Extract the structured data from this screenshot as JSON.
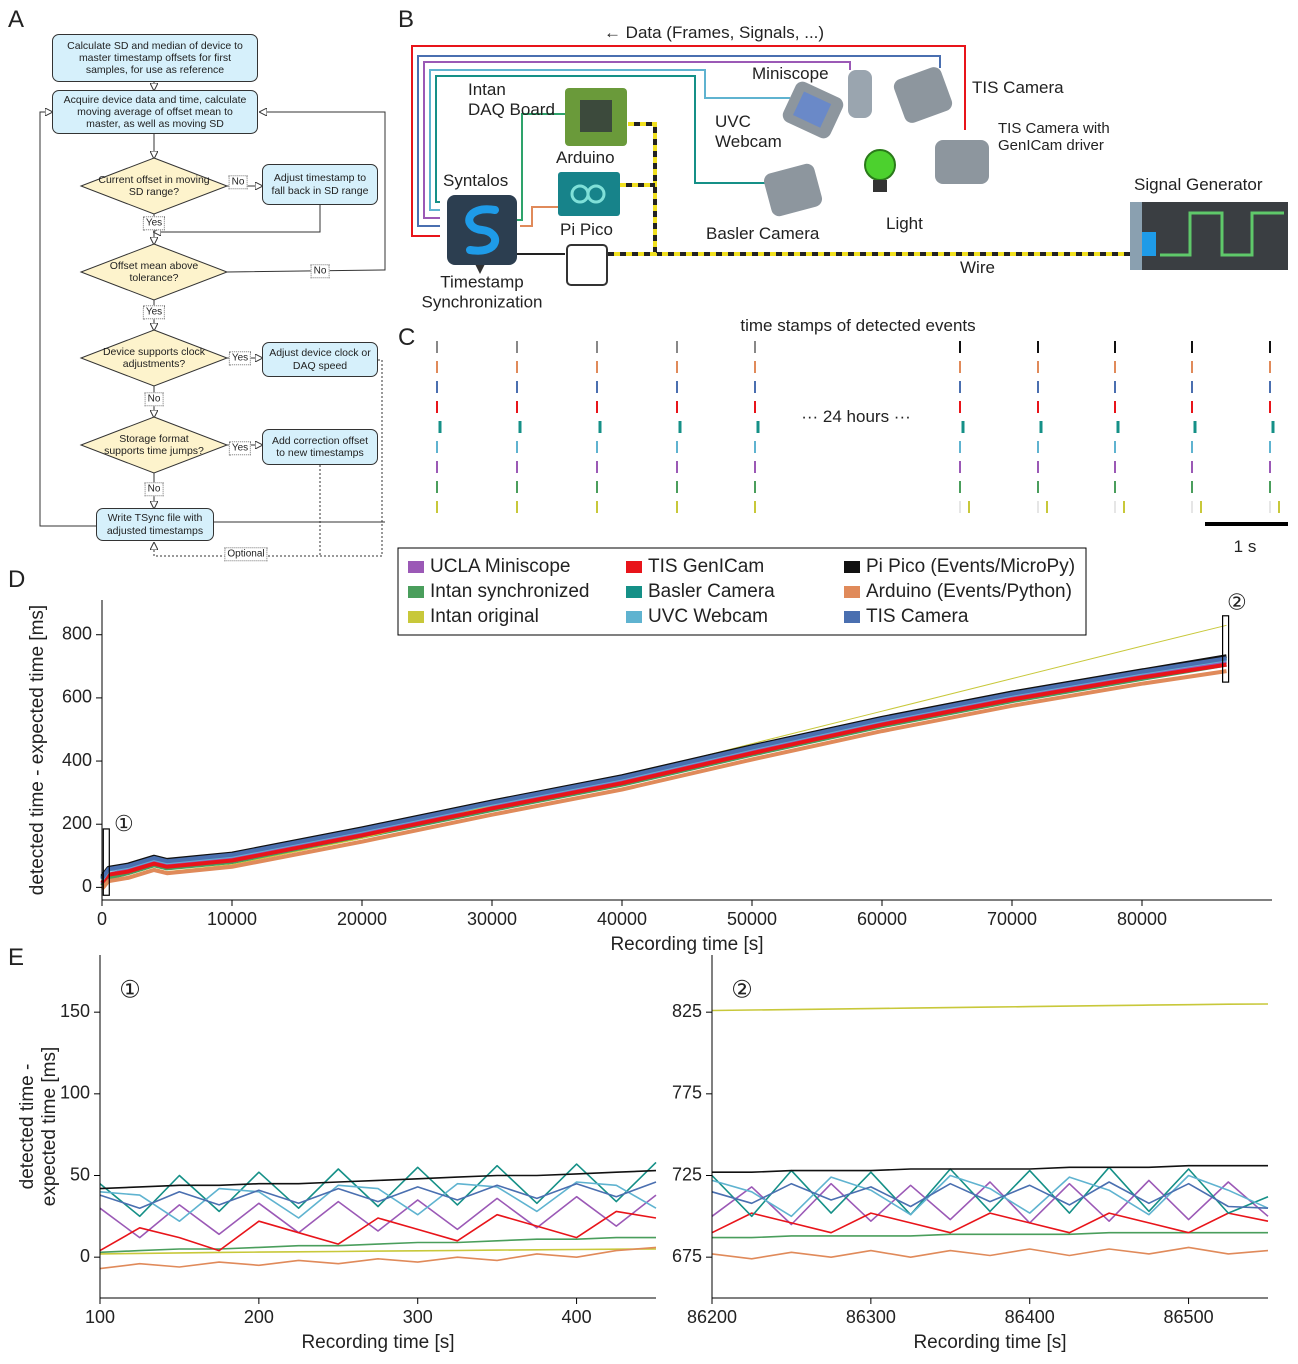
{
  "panel_labels": [
    "A",
    "B",
    "C",
    "D",
    "E"
  ],
  "flowchart": {
    "nodes": [
      "Calculate SD and median of device to master timestamp offsets for first samples, for use as reference",
      "Acquire device data and time, calculate moving average of offset mean to master, as well as moving SD",
      "Current offset in moving SD range?",
      "Adjust timestamp to fall back in SD range",
      "Offset mean above tolerance?",
      "Device supports clock adjustments?",
      "Adjust device clock or DAQ speed",
      "Storage format supports time jumps?",
      "Add correction offset to new timestamps",
      "Write TSync file with adjusted timestamps"
    ],
    "edge_labels": [
      "No",
      "Yes",
      "No",
      "Yes",
      "Yes",
      "No",
      "Yes",
      "No",
      "Optional"
    ]
  },
  "setup": {
    "labels": [
      "← Data (Frames, Signals, ...)",
      "Intan\nDAQ Board",
      "Miniscope",
      "TIS Camera",
      "UVC\nWebcam",
      "TIS Camera with\nGenICam driver",
      "Arduino",
      "Syntalos",
      "Pi Pico",
      "Basler Camera",
      "Light",
      "Signal Generator",
      "Wire",
      "Timestamp\nSynchronization"
    ]
  },
  "events": {
    "title": "time stamps of detected events",
    "gap_label": "··· 24 hours ···",
    "scale_label": "1 s"
  },
  "chart_data": [
    {
      "type": "line",
      "xlabel": "Recording time [s]",
      "ylabel": "detected time - expected time [ms]",
      "annotations": [
        "①",
        "②"
      ],
      "xlim": [
        0,
        90000
      ],
      "ylim": [
        -40,
        910
      ],
      "xticks": [
        0,
        10000,
        20000,
        30000,
        40000,
        50000,
        60000,
        70000,
        80000
      ],
      "yticks": [
        0,
        200,
        400,
        600,
        800
      ],
      "x": [
        0,
        500,
        2000,
        4000,
        5000,
        10000,
        20000,
        30000,
        40000,
        50000,
        60000,
        70000,
        80000,
        86500
      ],
      "series": [
        {
          "name": "UCLA Miniscope",
          "color": "#9b59b6",
          "values": [
            10,
            40,
            55,
            80,
            70,
            90,
            170,
            255,
            335,
            430,
            520,
            600,
            670,
            715
          ]
        },
        {
          "name": "Intan synchronized",
          "color": "#4a9e5c",
          "values": [
            5,
            30,
            45,
            70,
            60,
            80,
            160,
            245,
            325,
            420,
            510,
            590,
            660,
            705
          ]
        },
        {
          "name": "Intan original",
          "color": "#c8c83a",
          "values": [
            0,
            20,
            35,
            60,
            50,
            72,
            155,
            260,
            350,
            455,
            558,
            661,
            764,
            830
          ]
        },
        {
          "name": "TIS GenICam",
          "color": "#e8141a",
          "values": [
            15,
            40,
            50,
            75,
            65,
            85,
            165,
            250,
            330,
            425,
            515,
            595,
            665,
            705
          ]
        },
        {
          "name": "Basler Camera",
          "color": "#159087",
          "values": [
            30,
            60,
            70,
            95,
            85,
            105,
            185,
            270,
            350,
            445,
            535,
            615,
            685,
            728
          ]
        },
        {
          "name": "UVC Webcam",
          "color": "#5fb3d0",
          "values": [
            25,
            55,
            65,
            90,
            80,
            100,
            180,
            265,
            345,
            440,
            530,
            610,
            680,
            722
          ]
        },
        {
          "name": "Pi Pico (Events/MicroPy)",
          "color": "#111111",
          "values": [
            35,
            62,
            72,
            97,
            87,
            107,
            187,
            272,
            352,
            447,
            537,
            617,
            687,
            732
          ]
        },
        {
          "name": "Arduino (Events/Python)",
          "color": "#e08a5a",
          "values": [
            -5,
            20,
            30,
            55,
            45,
            65,
            145,
            230,
            310,
            405,
            495,
            575,
            645,
            685
          ]
        },
        {
          "name": "TIS Camera",
          "color": "#4a6fb0",
          "values": [
            28,
            58,
            68,
            93,
            83,
            103,
            183,
            268,
            348,
            443,
            533,
            613,
            683,
            725
          ]
        }
      ]
    },
    {
      "type": "line",
      "title": "①",
      "xlabel": "Recording time [s]",
      "ylabel": [
        "detected time -",
        "expected time [ms]"
      ],
      "xlim": [
        100,
        450
      ],
      "ylim": [
        -25,
        185
      ],
      "xticks": [
        100,
        200,
        300,
        400
      ],
      "yticks": [
        0,
        50,
        100,
        150
      ],
      "x": [
        100,
        125,
        150,
        175,
        200,
        225,
        250,
        275,
        300,
        325,
        350,
        375,
        400,
        425,
        450
      ],
      "series": [
        {
          "color": "#9b59b6",
          "values": [
            30,
            12,
            32,
            14,
            33,
            15,
            34,
            16,
            35,
            17,
            36,
            18,
            37,
            19,
            38
          ]
        },
        {
          "color": "#4a9e5c",
          "values": [
            3,
            4,
            5,
            5,
            6,
            7,
            7,
            8,
            9,
            9,
            10,
            11,
            11,
            12,
            12
          ]
        },
        {
          "color": "#c8c83a",
          "values": [
            2,
            2.3,
            2.6,
            2.9,
            3.1,
            3.3,
            3.5,
            3.7,
            3.9,
            4.1,
            4.3,
            4.5,
            4.7,
            4.9,
            5
          ]
        },
        {
          "color": "#e8141a",
          "values": [
            4,
            18,
            12,
            4,
            22,
            15,
            8,
            24,
            17,
            10,
            26,
            19,
            12,
            28,
            24
          ]
        },
        {
          "color": "#159087",
          "values": [
            45,
            25,
            50,
            28,
            52,
            30,
            54,
            31,
            55,
            32,
            56,
            33,
            57,
            34,
            58
          ]
        },
        {
          "color": "#5fb3d0",
          "values": [
            40,
            38,
            22,
            42,
            40,
            24,
            44,
            42,
            26,
            45,
            43,
            28,
            46,
            44,
            30
          ]
        },
        {
          "color": "#111111",
          "values": [
            42,
            43,
            44,
            44,
            45,
            45,
            46,
            47,
            48,
            49,
            50,
            50,
            51,
            52,
            53
          ]
        },
        {
          "color": "#e08a5a",
          "values": [
            -7,
            -4,
            -6,
            -3,
            -5,
            -2,
            -4,
            -1,
            -3,
            0,
            -2,
            2,
            0,
            4,
            6
          ]
        },
        {
          "color": "#4a6fb0",
          "values": [
            38,
            30,
            40,
            32,
            41,
            33,
            42,
            34,
            43,
            35,
            44,
            36,
            45,
            37,
            46
          ]
        }
      ]
    },
    {
      "type": "line",
      "title": "②",
      "xlabel": "Recording time [s]",
      "xlim": [
        86200,
        86550
      ],
      "ylim": [
        650,
        860
      ],
      "xticks": [
        86200,
        86300,
        86400,
        86500
      ],
      "yticks": [
        675,
        725,
        775,
        825
      ],
      "x": [
        86200,
        86225,
        86250,
        86275,
        86300,
        86325,
        86350,
        86375,
        86400,
        86425,
        86450,
        86475,
        86500,
        86525,
        86550
      ],
      "series": [
        {
          "color": "#9b59b6",
          "values": [
            700,
            718,
            695,
            720,
            697,
            719,
            698,
            721,
            696,
            720,
            697,
            722,
            698,
            721,
            700
          ]
        },
        {
          "color": "#4a9e5c",
          "values": [
            687,
            687,
            688,
            688,
            688,
            688,
            689,
            689,
            689,
            689,
            690,
            690,
            690,
            690,
            690
          ]
        },
        {
          "color": "#c8c83a",
          "values": [
            826,
            826.3,
            826.6,
            826.9,
            827.2,
            827.5,
            827.8,
            828.1,
            828.4,
            828.7,
            829,
            829.3,
            829.6,
            829.9,
            830
          ]
        },
        {
          "color": "#e8141a",
          "values": [
            690,
            702,
            696,
            690,
            702,
            696,
            690,
            702,
            696,
            690,
            702,
            696,
            690,
            702,
            697
          ]
        },
        {
          "color": "#159087",
          "values": [
            725,
            700,
            728,
            702,
            727,
            701,
            729,
            703,
            728,
            702,
            730,
            703,
            729,
            702,
            712
          ]
        },
        {
          "color": "#5fb3d0",
          "values": [
            722,
            715,
            700,
            724,
            716,
            701,
            725,
            717,
            702,
            724,
            716,
            701,
            725,
            716,
            705
          ]
        },
        {
          "color": "#111111",
          "values": [
            727,
            727,
            728,
            728,
            728,
            729,
            729,
            729,
            729,
            730,
            730,
            730,
            731,
            731,
            731
          ]
        },
        {
          "color": "#e08a5a",
          "values": [
            677,
            674,
            678,
            675,
            679,
            675,
            679,
            676,
            680,
            676,
            680,
            677,
            681,
            677,
            679
          ]
        },
        {
          "color": "#4a6fb0",
          "values": [
            715,
            708,
            720,
            710,
            718,
            706,
            720,
            709,
            719,
            707,
            721,
            708,
            720,
            706,
            705
          ]
        }
      ]
    }
  ]
}
